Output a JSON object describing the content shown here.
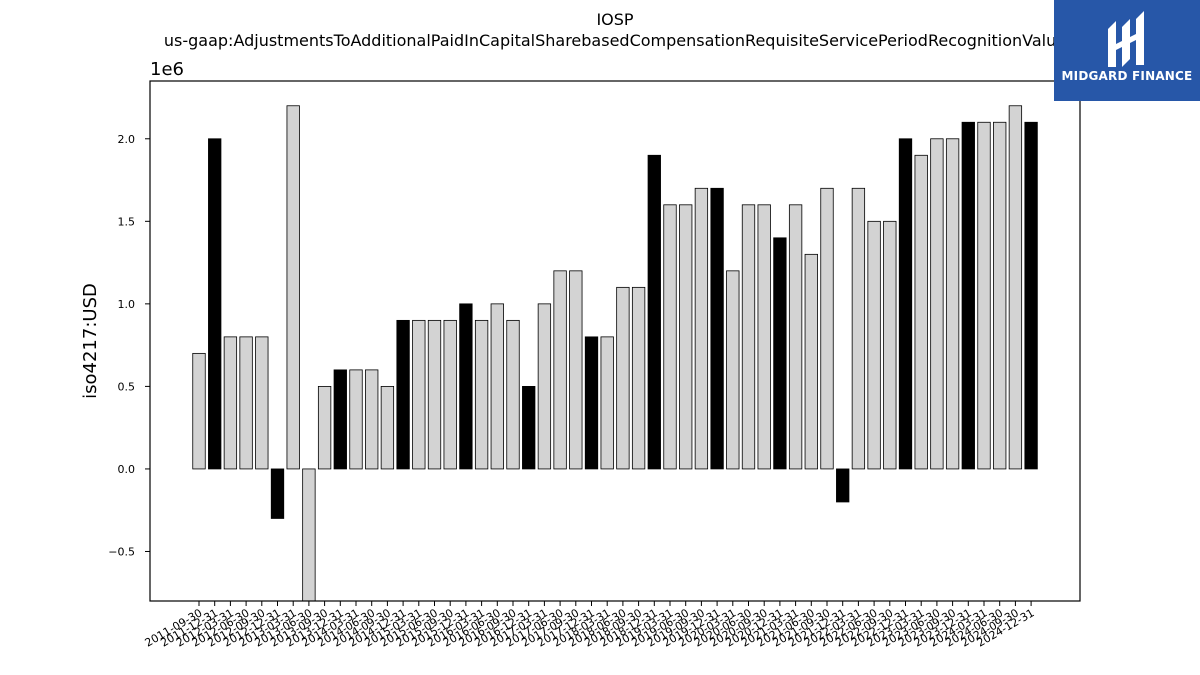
{
  "chart_data": {
    "type": "bar",
    "title": "IOSP",
    "subtitle": "us-gaap:AdjustmentsToAdditionalPaidInCapitalSharebasedCompensationRequisiteServicePeriodRecognitionValue",
    "ylabel": "iso4217:USD",
    "xlabel": "",
    "y_multiplier_label": "1e6",
    "ylim": [
      -0.8,
      2.35
    ],
    "yticks": [
      -0.5,
      0.0,
      0.5,
      1.0,
      1.5,
      2.0
    ],
    "ytick_labels": [
      "−0.5",
      "0.0",
      "0.5",
      "1.0",
      "1.5",
      "2.0"
    ],
    "grid": false,
    "colors": {
      "light": "#d3d3d3",
      "dark": "#000000",
      "edge": "#000000"
    },
    "categories": [
      "2011-09-30",
      "2011-12-31",
      "2012-03-31",
      "2012-06-30",
      "2012-09-30",
      "2012-12-31",
      "2013-03-31",
      "2013-06-30",
      "2013-09-30",
      "2013-12-31",
      "2014-03-31",
      "2014-06-30",
      "2014-09-30",
      "2014-12-31",
      "2015-03-31",
      "2015-06-30",
      "2015-09-30",
      "2015-12-31",
      "2016-03-31",
      "2016-06-30",
      "2016-09-30",
      "2016-12-31",
      "2017-03-31",
      "2017-06-30",
      "2017-09-30",
      "2017-12-31",
      "2018-03-31",
      "2018-06-30",
      "2018-09-30",
      "2018-12-31",
      "2019-03-31",
      "2019-06-30",
      "2019-09-30",
      "2019-12-31",
      "2020-03-31",
      "2020-06-30",
      "2020-09-30",
      "2020-12-31",
      "2021-03-31",
      "2021-06-30",
      "2021-09-30",
      "2021-12-31",
      "2022-03-31",
      "2022-06-30",
      "2022-09-30",
      "2022-12-31",
      "2023-03-31",
      "2023-06-30",
      "2023-09-30",
      "2023-12-31",
      "2024-03-31",
      "2024-06-30",
      "2024-09-30",
      "2024-12-31"
    ],
    "values": [
      0.7,
      2.0,
      0.8,
      0.8,
      0.8,
      -0.3,
      2.2,
      -0.8,
      0.5,
      0.6,
      0.6,
      0.6,
      0.5,
      0.9,
      0.9,
      0.9,
      0.9,
      1.0,
      0.9,
      1.0,
      0.9,
      0.5,
      1.0,
      1.2,
      1.2,
      0.8,
      0.8,
      1.1,
      1.1,
      1.9,
      1.6,
      1.6,
      1.7,
      1.7,
      1.2,
      1.6,
      1.6,
      1.4,
      1.6,
      1.3,
      1.7,
      -0.2,
      1.7,
      1.5,
      1.5,
      2.0,
      1.9,
      2.0,
      2.0,
      2.1,
      2.1,
      2.1,
      2.2,
      2.1
    ],
    "highlight": [
      false,
      true,
      false,
      false,
      false,
      true,
      false,
      false,
      false,
      true,
      false,
      false,
      false,
      true,
      false,
      false,
      false,
      true,
      false,
      false,
      false,
      true,
      false,
      false,
      false,
      true,
      false,
      false,
      false,
      true,
      false,
      false,
      false,
      true,
      false,
      false,
      false,
      true,
      false,
      false,
      false,
      true,
      false,
      false,
      false,
      true,
      false,
      false,
      false,
      true,
      false,
      false,
      false,
      true
    ]
  },
  "watermark": {
    "text": "MIDGARD FINANCE",
    "background": "#2757a8",
    "icon": "midgard-logo-icon"
  }
}
